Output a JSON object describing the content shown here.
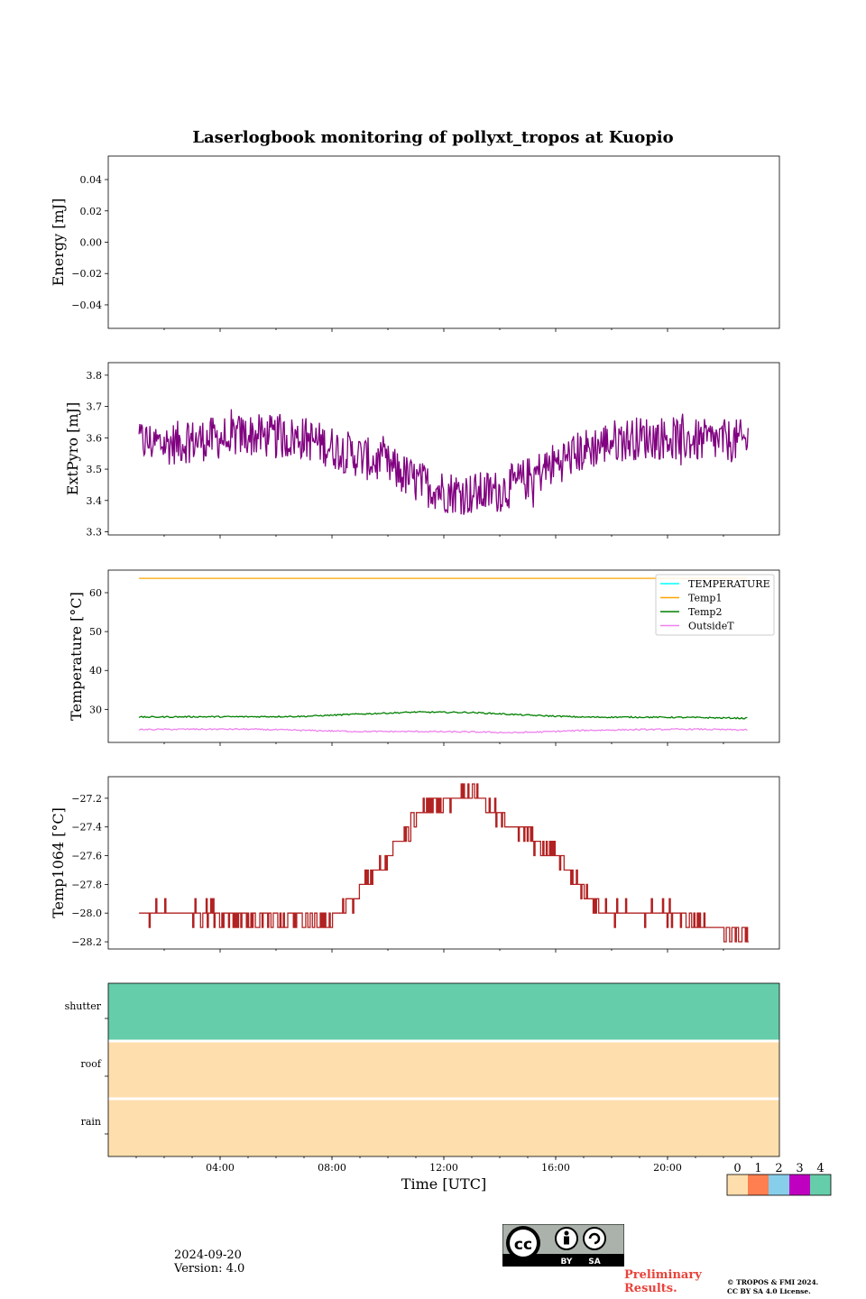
{
  "footer": {
    "date": "2024-09-20",
    "version": "Version: 4.0",
    "preliminary_line1": "Preliminary",
    "preliminary_line2": "Results.",
    "copyright_line1": "© TROPOS & FMI 2024.",
    "copyright_line2": "CC BY SA 4.0 License.",
    "license_badge": {
      "by": "BY",
      "sa": "SA"
    }
  },
  "chart_data": [
    {
      "type": "line",
      "title": "Laserlogbook monitoring of pollyxt_tropos at Kuopio",
      "ylabel": "Energy [mJ]",
      "ylim": [
        -0.055,
        0.055
      ],
      "yticks": [
        -0.04,
        -0.02,
        0.0,
        0.02,
        0.04
      ],
      "ytick_labels": [
        "−0.04",
        "−0.02",
        "0.00",
        "0.02",
        "0.04"
      ],
      "x_range_hours": [
        0,
        24
      ],
      "series": []
    },
    {
      "type": "line",
      "ylabel": "ExtPyro [mJ]",
      "ylim": [
        3.29,
        3.84
      ],
      "yticks": [
        3.3,
        3.4,
        3.5,
        3.6,
        3.7,
        3.8
      ],
      "ytick_labels": [
        "3.3",
        "3.4",
        "3.5",
        "3.6",
        "3.7",
        "3.8"
      ],
      "x_range_hours": [
        0,
        24
      ],
      "series": [
        {
          "color": "#800080",
          "x_hours": [
            1.1,
            2,
            3,
            4,
            5,
            6,
            7,
            8,
            9,
            10,
            11,
            12,
            13,
            14,
            15,
            16,
            17,
            18,
            19,
            20,
            21,
            22,
            22.9
          ],
          "values": [
            3.59,
            3.58,
            3.59,
            3.6,
            3.61,
            3.6,
            3.6,
            3.57,
            3.54,
            3.51,
            3.46,
            3.43,
            3.42,
            3.43,
            3.47,
            3.52,
            3.56,
            3.59,
            3.6,
            3.6,
            3.59,
            3.59,
            3.59
          ]
        }
      ]
    },
    {
      "type": "line",
      "ylabel": "Temperature [°C]",
      "ylim": [
        21.5,
        65.8
      ],
      "yticks": [
        30,
        40,
        50,
        60
      ],
      "ytick_labels": [
        "30",
        "40",
        "50",
        "60"
      ],
      "x_range_hours": [
        0,
        24
      ],
      "legend": "top-right",
      "series": [
        {
          "name": "TEMPERATURE",
          "color": "#00ffff",
          "x_hours": [],
          "values": []
        },
        {
          "name": "Temp1",
          "color": "#ffa500",
          "x_hours": [
            1.1,
            22.9
          ],
          "values": [
            63.7,
            63.7
          ]
        },
        {
          "name": "Temp2",
          "color": "#008000",
          "x_hours": [
            1.1,
            3,
            5,
            7,
            9,
            11,
            13,
            15,
            17,
            19,
            21,
            22.9
          ],
          "values": [
            28.0,
            28.1,
            28.1,
            28.2,
            28.8,
            29.3,
            29.2,
            28.5,
            28.0,
            28.0,
            27.9,
            27.7
          ]
        },
        {
          "name": "OutsideT",
          "color": "#ee82ee",
          "x_hours": [
            1.1,
            3,
            5,
            7,
            9,
            11,
            13,
            14.5,
            15.5,
            17,
            19,
            21,
            22.9
          ],
          "values": [
            24.8,
            24.9,
            24.9,
            24.6,
            24.3,
            24.3,
            24.2,
            24.0,
            24.2,
            24.6,
            24.8,
            24.9,
            24.7
          ]
        }
      ]
    },
    {
      "type": "line",
      "ylabel": "Temp1064 [°C]",
      "ylim": [
        -28.25,
        -27.05
      ],
      "yticks": [
        -28.2,
        -28.0,
        -27.8,
        -27.6,
        -27.4,
        -27.2
      ],
      "ytick_labels": [
        "−28.2",
        "−28.0",
        "−27.8",
        "−27.6",
        "−27.4",
        "−27.2"
      ],
      "x_range_hours": [
        0,
        24
      ],
      "series": [
        {
          "color": "#b22222",
          "x_hours": [
            1.1,
            2,
            3,
            4,
            5,
            6,
            7,
            8,
            8.4,
            8.8,
            9.2,
            9.6,
            10,
            10.4,
            10.8,
            11.2,
            11.6,
            12,
            12.4,
            12.8,
            13.2,
            13.6,
            14,
            14.4,
            14.8,
            15.2,
            15.6,
            16,
            16.4,
            16.8,
            17.2,
            17.6,
            18,
            19,
            20,
            21,
            21.6,
            22,
            22.9
          ],
          "values": [
            -28.0,
            -28.0,
            -28.0,
            -28.0,
            -28.05,
            -28.05,
            -28.05,
            -28.05,
            -27.95,
            -27.9,
            -27.8,
            -27.7,
            -27.6,
            -27.5,
            -27.4,
            -27.3,
            -27.25,
            -27.2,
            -27.2,
            -27.15,
            -27.15,
            -27.25,
            -27.35,
            -27.4,
            -27.45,
            -27.5,
            -27.55,
            -27.6,
            -27.7,
            -27.8,
            -27.9,
            -27.95,
            -28.0,
            -28.0,
            -28.0,
            -28.05,
            -28.1,
            -28.15,
            -28.15
          ]
        }
      ]
    },
    {
      "type": "heatmap",
      "xlabel": "Time [UTC]",
      "x_range_hours": [
        0,
        24
      ],
      "xticks_hours": [
        4,
        8,
        12,
        16,
        20
      ],
      "xtick_labels": [
        "04:00",
        "08:00",
        "12:00",
        "16:00",
        "20:00"
      ],
      "rows": [
        {
          "label": "shutter",
          "status": 4
        },
        {
          "label": "roof",
          "status": 0
        },
        {
          "label": "rain",
          "status": 0
        }
      ],
      "colorbar": {
        "labels": [
          "0",
          "1",
          "2",
          "3",
          "4"
        ],
        "colors": [
          "#ffdead",
          "#ff7f50",
          "#87ceeb",
          "#c000c0",
          "#66cdaa"
        ]
      }
    }
  ]
}
